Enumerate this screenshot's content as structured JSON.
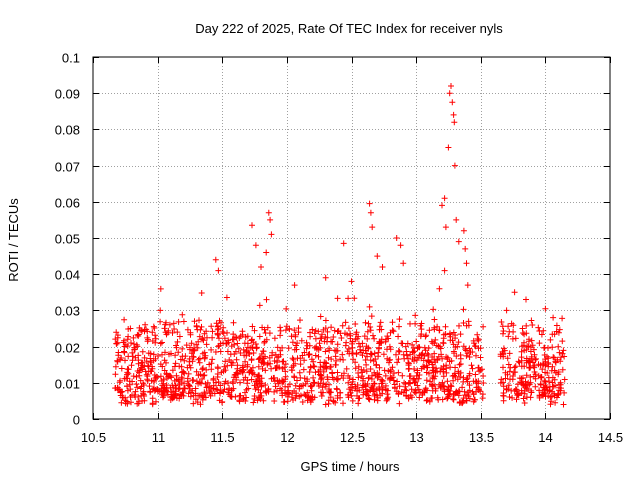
{
  "chart_data": {
    "type": "scatter",
    "title": "Day 222 of 2025, Rate Of TEC Index for receiver nyls",
    "xlabel": "GPS time / hours",
    "ylabel": "ROTI / TECUs",
    "xlim": [
      10.5,
      14.5
    ],
    "ylim": [
      0,
      0.1
    ],
    "xticks": [
      "10.5",
      "11",
      "11.5",
      "12",
      "12.5",
      "13",
      "13.5",
      "14",
      "14.5"
    ],
    "yticks": [
      "0",
      "0.01",
      "0.02",
      "0.03",
      "0.04",
      "0.05",
      "0.06",
      "0.07",
      "0.08",
      "0.09",
      "0.1"
    ],
    "xtick_values": [
      10.5,
      11,
      11.5,
      12,
      12.5,
      13,
      13.5,
      14,
      14.5
    ],
    "ytick_values": [
      0,
      0.01,
      0.02,
      0.03,
      0.04,
      0.05,
      0.06,
      0.07,
      0.08,
      0.09,
      0.1
    ],
    "grid": true,
    "marker": "+",
    "marker_color": "#ff0000",
    "series": [
      {
        "name": "ROTI",
        "segments": [
          {
            "x_start": 10.67,
            "x_end": 13.52,
            "typical_min": 0.006,
            "typical_max": 0.026
          },
          {
            "x_start": 13.65,
            "x_end": 14.15,
            "typical_min": 0.006,
            "typical_max": 0.026
          }
        ],
        "notable_points": [
          {
            "x": 10.72,
            "y": 0.0045
          },
          {
            "x": 10.88,
            "y": 0.005
          },
          {
            "x": 11.02,
            "y": 0.03
          },
          {
            "x": 11.45,
            "y": 0.044
          },
          {
            "x": 11.47,
            "y": 0.041
          },
          {
            "x": 11.73,
            "y": 0.0535
          },
          {
            "x": 11.76,
            "y": 0.048
          },
          {
            "x": 11.8,
            "y": 0.042
          },
          {
            "x": 11.86,
            "y": 0.057
          },
          {
            "x": 11.87,
            "y": 0.055
          },
          {
            "x": 11.88,
            "y": 0.051
          },
          {
            "x": 11.84,
            "y": 0.046
          },
          {
            "x": 12.06,
            "y": 0.037
          },
          {
            "x": 12.44,
            "y": 0.0485
          },
          {
            "x": 12.5,
            "y": 0.038
          },
          {
            "x": 12.64,
            "y": 0.0595
          },
          {
            "x": 12.65,
            "y": 0.057
          },
          {
            "x": 12.66,
            "y": 0.053
          },
          {
            "x": 12.7,
            "y": 0.045
          },
          {
            "x": 12.74,
            "y": 0.042
          },
          {
            "x": 12.85,
            "y": 0.05
          },
          {
            "x": 12.88,
            "y": 0.048
          },
          {
            "x": 12.9,
            "y": 0.043
          },
          {
            "x": 13.2,
            "y": 0.059
          },
          {
            "x": 13.22,
            "y": 0.061
          },
          {
            "x": 13.23,
            "y": 0.053
          },
          {
            "x": 13.25,
            "y": 0.075
          },
          {
            "x": 13.26,
            "y": 0.09
          },
          {
            "x": 13.27,
            "y": 0.092
          },
          {
            "x": 13.28,
            "y": 0.0875
          },
          {
            "x": 13.29,
            "y": 0.084
          },
          {
            "x": 13.295,
            "y": 0.082
          },
          {
            "x": 13.3,
            "y": 0.07
          },
          {
            "x": 13.31,
            "y": 0.055
          },
          {
            "x": 13.33,
            "y": 0.049
          },
          {
            "x": 13.37,
            "y": 0.052
          },
          {
            "x": 13.38,
            "y": 0.047
          },
          {
            "x": 13.39,
            "y": 0.043
          },
          {
            "x": 13.4,
            "y": 0.037
          },
          {
            "x": 13.22,
            "y": 0.041
          },
          {
            "x": 13.18,
            "y": 0.036
          },
          {
            "x": 12.3,
            "y": 0.039
          },
          {
            "x": 13.7,
            "y": 0.03
          },
          {
            "x": 13.85,
            "y": 0.033
          },
          {
            "x": 14.06,
            "y": 0.028
          },
          {
            "x": 14.14,
            "y": 0.004
          },
          {
            "x": 12.3,
            "y": 0.004
          }
        ]
      }
    ]
  }
}
